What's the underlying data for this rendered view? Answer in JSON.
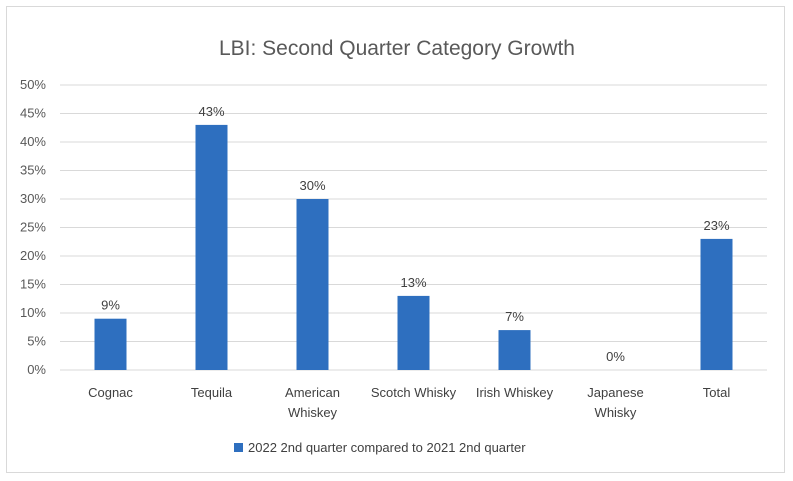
{
  "chart_data": {
    "type": "bar",
    "title": "LBI: Second Quarter Category Growth",
    "categories": [
      [
        "Cognac"
      ],
      [
        "Tequila"
      ],
      [
        "American",
        "Whiskey"
      ],
      [
        "Scotch Whisky"
      ],
      [
        "Irish Whiskey"
      ],
      [
        "Japanese",
        "Whisky"
      ],
      [
        "Total"
      ]
    ],
    "series": [
      {
        "name": "2022 2nd quarter compared to 2021 2nd quarter",
        "values": [
          9,
          43,
          30,
          13,
          7,
          0,
          23
        ],
        "data_labels": [
          "9%",
          "43%",
          "30%",
          "13%",
          "7%",
          "0%",
          "23%"
        ]
      }
    ],
    "ylim": [
      0,
      50
    ],
    "y_ticks": [
      0,
      5,
      10,
      15,
      20,
      25,
      30,
      35,
      40,
      45,
      50
    ],
    "y_tick_labels": [
      "0%",
      "5%",
      "10%",
      "15%",
      "20%",
      "25%",
      "30%",
      "35%",
      "40%",
      "45%",
      "50%"
    ],
    "xlabel": "",
    "ylabel": "",
    "grid": true,
    "legend_position": "bottom",
    "colors": {
      "bar": "#2e6fbf",
      "grid": "#d9d9d9",
      "title": "#595959",
      "text": "#404040"
    }
  }
}
